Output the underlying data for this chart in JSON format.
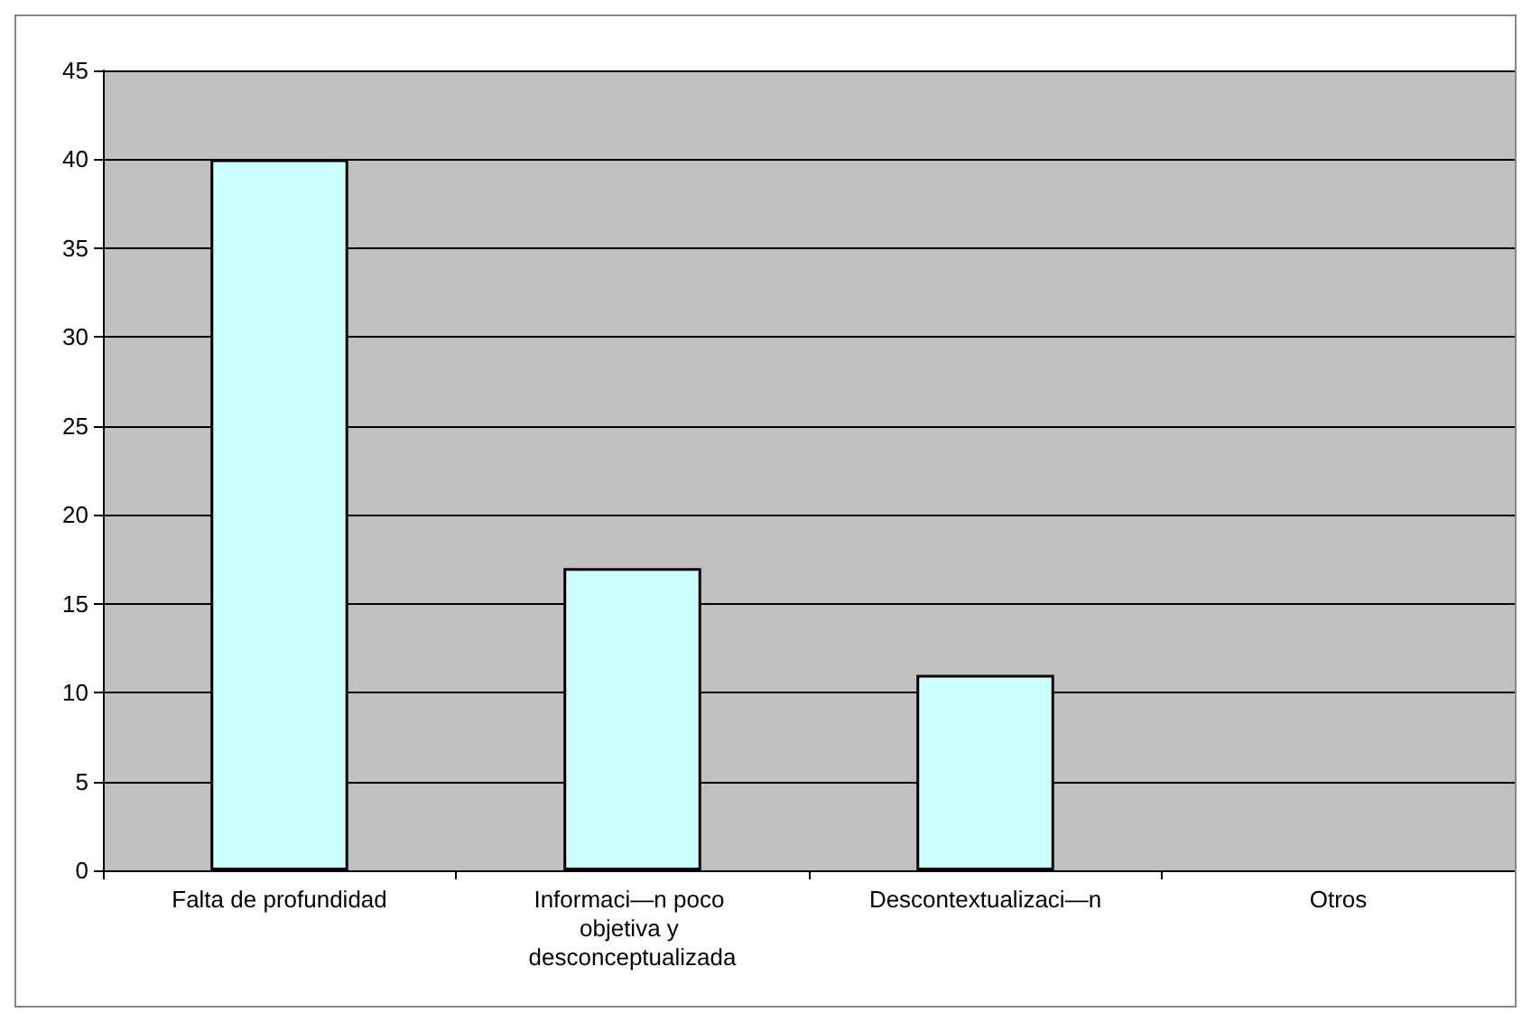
{
  "chart_data": {
    "type": "bar",
    "categories": [
      "Falta de profundidad",
      "Informaci—n poco objetiva y desconceptualizada",
      "Descontextualizaci—n",
      "Otros"
    ],
    "values": [
      40,
      17,
      11,
      null
    ],
    "color": "#ccffff",
    "ylim": [
      0,
      45
    ],
    "yticks": [
      0,
      5,
      10,
      15,
      20,
      25,
      30,
      35,
      40,
      45
    ],
    "grid": "y"
  }
}
